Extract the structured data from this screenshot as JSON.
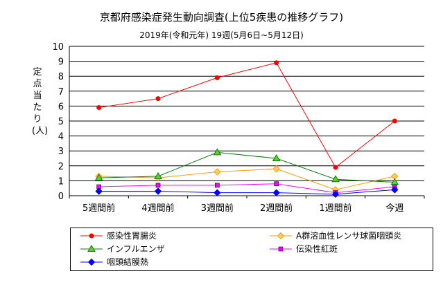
{
  "chart_data": {
    "type": "line",
    "title": "京都府感染症発生動向調査(上位5疾患の推移グラフ)",
    "subtitle": "2019年(令和元年) 19週(5月6日~5月12日)",
    "ylabel": "定点当たり(人)",
    "xlabel": "",
    "ylim": [
      0,
      10
    ],
    "yticks": [
      "0",
      "1",
      "2",
      "3",
      "4",
      "5",
      "6",
      "7",
      "8",
      "9",
      "10"
    ],
    "grid": true,
    "legend_position": "bottom",
    "categories": [
      "5週間前",
      "4週間前",
      "3週間前",
      "2週間前",
      "1週間前",
      "今週"
    ],
    "series": [
      {
        "name": "感染性胃腸炎",
        "color": "#ff0000",
        "marker": "circle",
        "values": [
          5.9,
          6.5,
          7.9,
          8.9,
          1.9,
          5.0
        ]
      },
      {
        "name": "A群溶血性レンサ球菌咽頭炎",
        "color": "#ff9900",
        "marker": "diamond",
        "values": [
          1.3,
          1.2,
          1.6,
          1.8,
          0.4,
          1.3
        ]
      },
      {
        "name": "インフルエンザ",
        "color": "#008000",
        "marker": "triangle",
        "values": [
          1.2,
          1.3,
          2.9,
          2.5,
          1.1,
          0.9
        ]
      },
      {
        "name": "伝染性紅斑",
        "color": "#ff00ff",
        "marker": "square",
        "values": [
          0.6,
          0.7,
          0.7,
          0.8,
          0.2,
          0.6
        ]
      },
      {
        "name": "咽頭結膜熱",
        "color": "#0000ff",
        "marker": "diamond",
        "values": [
          0.3,
          0.3,
          0.2,
          0.2,
          0.1,
          0.4
        ]
      }
    ]
  }
}
